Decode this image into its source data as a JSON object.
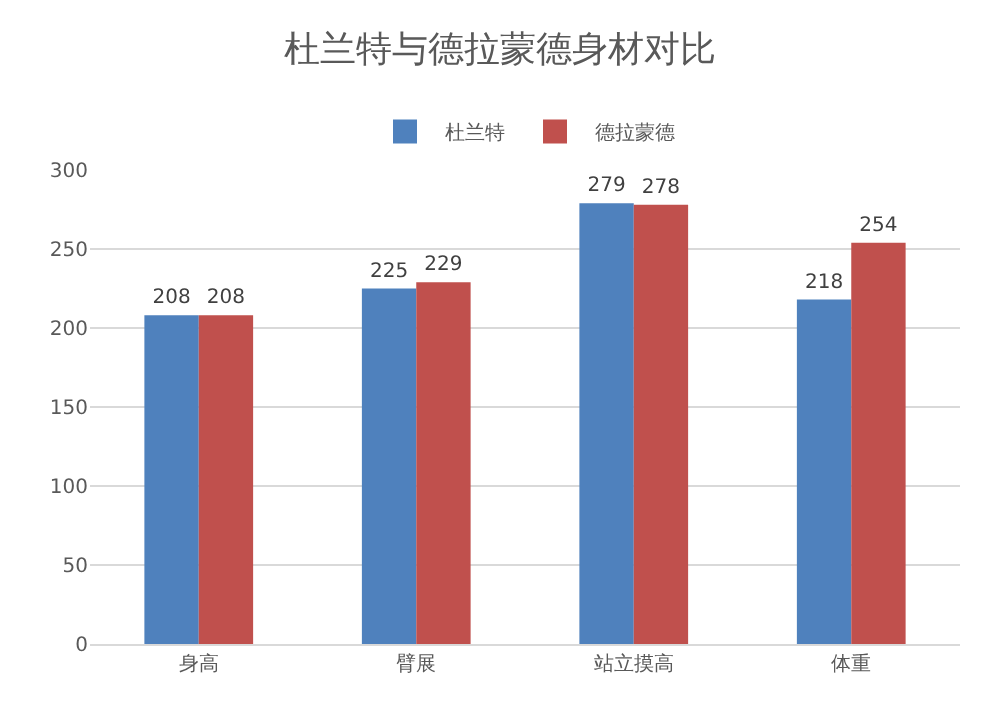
{
  "chart_data": {
    "type": "bar",
    "title": "杜兰特与德拉蒙德身材对比",
    "categories": [
      "身高",
      "臂展",
      "站立摸高",
      "体重"
    ],
    "series": [
      {
        "name": "杜兰特",
        "color": "#4f81bd",
        "values": [
          208,
          225,
          279,
          218
        ]
      },
      {
        "name": "德拉蒙德",
        "color": "#c0504d",
        "values": [
          208,
          229,
          278,
          254
        ]
      }
    ],
    "ylim": [
      0,
      300
    ],
    "yticks": [
      0,
      50,
      100,
      150,
      200,
      250,
      300
    ],
    "grid": "y",
    "legend": "top",
    "data_labels": true
  }
}
